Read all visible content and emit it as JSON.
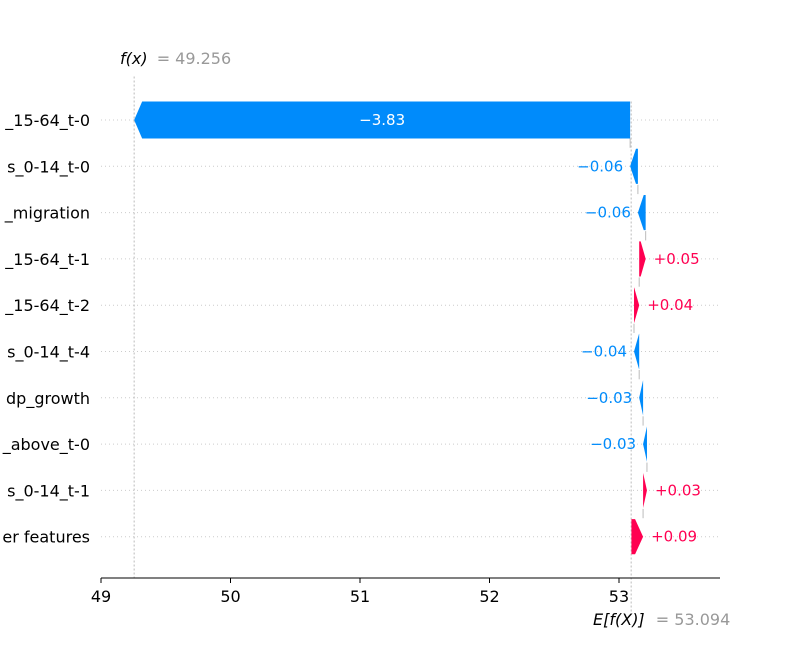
{
  "chart_data": {
    "type": "waterfall",
    "fx_label": "f(x)",
    "fx_value": "= 49.256",
    "fx": 49.256,
    "base_label": "E[f(X)]",
    "base_value": "= 53.094",
    "base": 53.094,
    "xlim": [
      49,
      53.78
    ],
    "xticks": [
      49,
      50,
      51,
      52,
      53
    ],
    "colors": {
      "positive": "#ff0051",
      "negative": "#008bfb"
    },
    "features": [
      {
        "label": "_15-64_t-0",
        "value": -3.83,
        "text": "−3.83"
      },
      {
        "label": "s_0-14_t-0",
        "value": -0.06,
        "text": "−0.06"
      },
      {
        "label": "_migration",
        "value": -0.06,
        "text": "−0.06"
      },
      {
        "label": "_15-64_t-1",
        "value": 0.05,
        "text": "+0.05"
      },
      {
        "label": "_15-64_t-2",
        "value": 0.04,
        "text": "+0.04"
      },
      {
        "label": "s_0-14_t-4",
        "value": -0.04,
        "text": "−0.04"
      },
      {
        "label": "dp_growth",
        "value": -0.03,
        "text": "−0.03"
      },
      {
        "label": "_above_t-0",
        "value": -0.03,
        "text": "−0.03"
      },
      {
        "label": "s_0-14_t-1",
        "value": 0.03,
        "text": "+0.03"
      },
      {
        "label": "er features",
        "value": 0.09,
        "text": "+0.09"
      }
    ]
  }
}
